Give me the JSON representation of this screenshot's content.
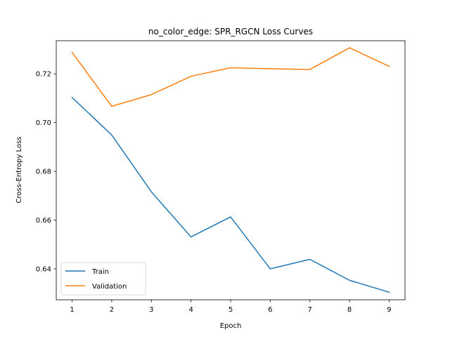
{
  "chart_data": {
    "type": "line",
    "title": "no_color_edge: SPR_RGCN Loss Curves",
    "xlabel": "Epoch",
    "ylabel": "Cross-Entropy Loss",
    "x": [
      1,
      2,
      3,
      4,
      5,
      6,
      7,
      8,
      9
    ],
    "xlim": [
      0.6,
      9.4
    ],
    "ylim": [
      0.6273,
      0.7336
    ],
    "xticks": [
      1,
      2,
      3,
      4,
      5,
      6,
      7,
      8,
      9
    ],
    "yticks": [
      0.64,
      0.66,
      0.68,
      0.7,
      0.72
    ],
    "ytick_labels": [
      "0.64",
      "0.66",
      "0.68",
      "0.70",
      "0.72"
    ],
    "grid": false,
    "legend_position": "lower-left",
    "series": [
      {
        "name": "Train",
        "color": "#1f77b4",
        "values": [
          0.7103,
          0.6949,
          0.6716,
          0.6531,
          0.6613,
          0.64,
          0.6439,
          0.6353,
          0.6304
        ]
      },
      {
        "name": "Validation",
        "color": "#ff7f0e",
        "values": [
          0.7288,
          0.7067,
          0.7115,
          0.719,
          0.7225,
          0.7221,
          0.7218,
          0.7307,
          0.7231
        ]
      }
    ]
  }
}
